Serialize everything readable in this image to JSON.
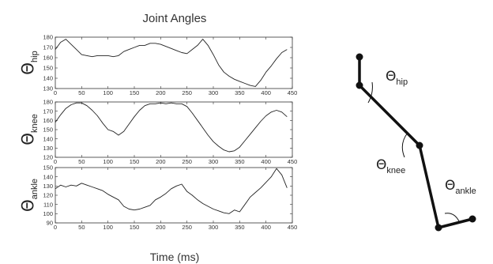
{
  "figure": {
    "title": "Joint Angles",
    "xlabel": "Time (ms)"
  },
  "chart_data": [
    {
      "type": "line",
      "ylabel_symbol": "Θ",
      "ylabel_sub": "hip",
      "xlim": [
        0,
        450
      ],
      "ylim": [
        130,
        180
      ],
      "xticks": [
        0,
        50,
        100,
        150,
        200,
        250,
        300,
        350,
        400,
        450
      ],
      "yticks": [
        130,
        140,
        150,
        160,
        170,
        180
      ],
      "x": [
        0,
        10,
        20,
        30,
        40,
        50,
        60,
        70,
        80,
        90,
        100,
        110,
        120,
        130,
        140,
        150,
        160,
        170,
        180,
        190,
        200,
        210,
        220,
        230,
        240,
        250,
        260,
        270,
        280,
        290,
        300,
        310,
        320,
        330,
        340,
        350,
        360,
        370,
        380,
        390,
        400,
        410,
        420,
        430,
        440
      ],
      "y": [
        168,
        175,
        178,
        173,
        168,
        163,
        162,
        161,
        162,
        162,
        162,
        161,
        162,
        166,
        168,
        170,
        172,
        172,
        174,
        174,
        173,
        171,
        169,
        167,
        165,
        164,
        168,
        172,
        178,
        172,
        163,
        153,
        146,
        142,
        139,
        137,
        135,
        133,
        132,
        138,
        146,
        152,
        159,
        165,
        168
      ]
    },
    {
      "type": "line",
      "ylabel_symbol": "Θ",
      "ylabel_sub": "knee",
      "xlim": [
        0,
        450
      ],
      "ylim": [
        120,
        180
      ],
      "xticks": [
        0,
        50,
        100,
        150,
        200,
        250,
        300,
        350,
        400,
        450
      ],
      "yticks": [
        120,
        130,
        140,
        150,
        160,
        170,
        180
      ],
      "x": [
        0,
        10,
        20,
        30,
        40,
        50,
        60,
        70,
        80,
        90,
        100,
        110,
        120,
        130,
        140,
        150,
        160,
        170,
        180,
        190,
        200,
        210,
        220,
        230,
        240,
        250,
        260,
        270,
        280,
        290,
        300,
        310,
        320,
        330,
        340,
        350,
        360,
        370,
        380,
        390,
        400,
        410,
        420,
        430,
        440
      ],
      "y": [
        158,
        166,
        173,
        177,
        179,
        179,
        176,
        171,
        165,
        157,
        150,
        148,
        144,
        148,
        156,
        164,
        171,
        176,
        178,
        178,
        179,
        178,
        179,
        178,
        178,
        175,
        168,
        160,
        152,
        144,
        137,
        132,
        128,
        126,
        127,
        131,
        138,
        145,
        152,
        159,
        165,
        169,
        171,
        169,
        164
      ]
    },
    {
      "type": "line",
      "ylabel_symbol": "Θ",
      "ylabel_sub": "ankle",
      "xlim": [
        0,
        450
      ],
      "ylim": [
        90,
        150
      ],
      "xticks": [
        0,
        50,
        100,
        150,
        200,
        250,
        300,
        350,
        400,
        450
      ],
      "yticks": [
        90,
        100,
        110,
        120,
        130,
        140,
        150
      ],
      "x": [
        0,
        10,
        20,
        30,
        40,
        50,
        60,
        70,
        80,
        90,
        100,
        110,
        120,
        130,
        140,
        150,
        160,
        170,
        180,
        190,
        200,
        210,
        220,
        230,
        240,
        250,
        260,
        270,
        280,
        290,
        300,
        310,
        320,
        330,
        340,
        350,
        360,
        370,
        380,
        390,
        400,
        410,
        420,
        430,
        440
      ],
      "y": [
        127,
        131,
        129,
        131,
        130,
        133,
        131,
        129,
        127,
        125,
        121,
        118,
        115,
        108,
        105,
        104,
        105,
        107,
        109,
        115,
        118,
        122,
        127,
        130,
        132,
        124,
        120,
        115,
        111,
        108,
        105,
        103,
        101,
        100,
        104,
        102,
        110,
        118,
        123,
        128,
        134,
        140,
        149,
        142,
        128
      ]
    }
  ],
  "diagram": {
    "labels": [
      {
        "symbol": "Θ",
        "sub": "hip"
      },
      {
        "symbol": "Θ",
        "sub": "knee"
      },
      {
        "symbol": "Θ",
        "sub": "ankle"
      }
    ]
  }
}
